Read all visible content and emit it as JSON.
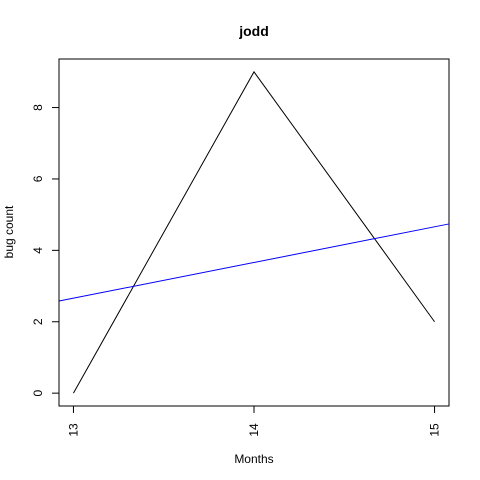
{
  "chart_data": {
    "type": "line",
    "title": "jodd",
    "xlabel": "Months",
    "ylabel": "bug count",
    "xlim": [
      12.92,
      15.08
    ],
    "ylim": [
      -0.36,
      9.36
    ],
    "x_ticks": [
      13,
      14,
      15
    ],
    "x_tick_labels": [
      "13",
      "14",
      "15"
    ],
    "y_ticks": [
      0,
      2,
      4,
      6,
      8
    ],
    "y_tick_labels": [
      "0",
      "2",
      "4",
      "6",
      "8"
    ],
    "grid": false,
    "legend": "none",
    "series": [
      {
        "x": [
          13,
          14,
          15
        ],
        "values": [
          0,
          9,
          2
        ],
        "color": "#000000"
      },
      {
        "type": "abline",
        "x": [
          12.92,
          15.08
        ],
        "values": [
          2.58,
          4.74
        ],
        "color": "#0000ff"
      }
    ]
  }
}
